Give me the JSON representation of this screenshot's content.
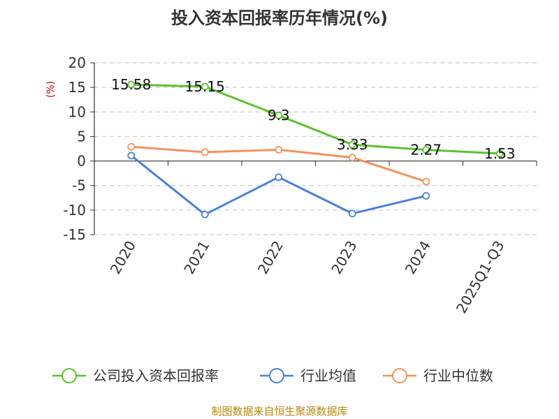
{
  "chart_data": {
    "type": "line",
    "title": "投入资本回报率历年情况(%)",
    "ylabel": "(%)",
    "categories": [
      "2020",
      "2021",
      "2022",
      "2023",
      "2024",
      "2025Q1-Q3"
    ],
    "ylim": [
      -15,
      20
    ],
    "yticks": [
      20,
      15,
      10,
      5,
      0,
      -5,
      -10,
      -15
    ],
    "grid": true,
    "legend": "bottom",
    "series": [
      {
        "name": "公司投入资本回报率",
        "color": "#5cc12b",
        "values": [
          15.58,
          15.15,
          9.3,
          3.33,
          2.27,
          1.53
        ],
        "labels": [
          "15.58",
          "15.15",
          "9.3",
          "3.33",
          "2.27",
          "1.53"
        ]
      },
      {
        "name": "行业均值",
        "color": "#4a7fdc",
        "values": [
          1.1,
          -10.9,
          -3.3,
          -10.7,
          -7.1,
          null
        ]
      },
      {
        "name": "行业中位数",
        "color": "#f5915c",
        "values": [
          2.9,
          1.8,
          2.3,
          0.7,
          -4.2,
          null
        ]
      }
    ]
  },
  "source": "制图数据来自恒生聚源数据库"
}
